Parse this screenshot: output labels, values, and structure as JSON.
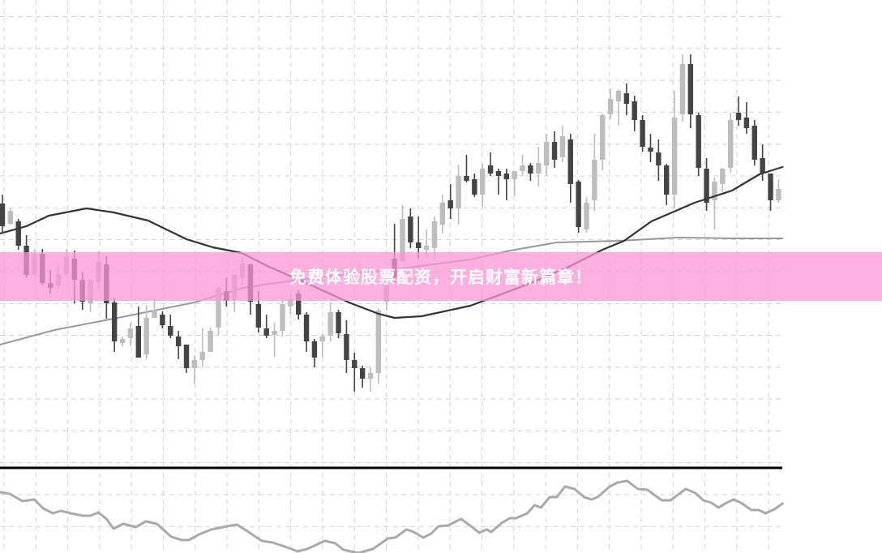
{
  "banner": {
    "text": "免费体验股票配资，开启财富新篇章！",
    "color": "#fb96d6"
  },
  "colors": {
    "bull": "#bdbdbd",
    "bear": "#444444",
    "ma_fast": "#333333",
    "ma_slow": "#999999",
    "oscillator": "#aaaaaa",
    "grid": "#d4d4d4",
    "separator": "#000000"
  },
  "chart_data": [
    {
      "type": "candlestick",
      "grid": true,
      "ohlc_format": [
        "open",
        "high",
        "low",
        "close"
      ],
      "candles": [
        [
          34.9,
          36.0,
          31.2,
          32.1
        ],
        [
          32.4,
          34.3,
          32.3,
          34.0
        ],
        [
          32.7,
          33.0,
          29.2,
          29.7
        ],
        [
          29.7,
          31.0,
          25.8,
          26.1
        ],
        [
          26.2,
          29.3,
          26.0,
          28.7
        ],
        [
          28.7,
          29.3,
          24.8,
          25.1
        ],
        [
          25.1,
          26.7,
          23.8,
          24.5
        ],
        [
          24.8,
          27.4,
          24.3,
          26.2
        ],
        [
          26.2,
          29.3,
          26.0,
          28.4
        ],
        [
          28.1,
          29.1,
          22.6,
          25.5
        ],
        [
          25.5,
          26.4,
          21.8,
          22.8
        ],
        [
          22.6,
          25.5,
          21.5,
          25.5
        ],
        [
          25.2,
          29.0,
          24.5,
          27.7
        ],
        [
          27.4,
          28.4,
          20.7,
          22.6
        ],
        [
          22.7,
          23.2,
          16.6,
          17.9
        ],
        [
          17.7,
          18.5,
          17.3,
          18.2
        ],
        [
          18.3,
          20.2,
          17.3,
          19.5
        ],
        [
          19.8,
          22.2,
          15.9,
          15.9
        ],
        [
          16.3,
          22.3,
          15.7,
          20.8
        ],
        [
          20.8,
          23.1,
          20.8,
          21.8
        ],
        [
          21.2,
          21.6,
          19.5,
          19.9
        ],
        [
          19.8,
          21.2,
          18.3,
          18.6
        ],
        [
          18.5,
          19.2,
          15.7,
          17.3
        ],
        [
          17.5,
          17.5,
          14.0,
          14.6
        ],
        [
          14.6,
          16.2,
          12.7,
          15.6
        ],
        [
          15.6,
          19.5,
          14.7,
          16.6
        ],
        [
          16.6,
          19.6,
          16.6,
          19.2
        ],
        [
          19.6,
          24.7,
          18.7,
          24.5
        ],
        [
          24.1,
          25.7,
          22.2,
          22.9
        ],
        [
          23.0,
          26.1,
          21.5,
          26.1
        ],
        [
          25.8,
          28.3,
          24.8,
          27.5
        ],
        [
          27.4,
          27.5,
          21.2,
          22.8
        ],
        [
          22.5,
          24.1,
          19.0,
          19.6
        ],
        [
          19.5,
          21.2,
          18.3,
          18.6
        ],
        [
          18.7,
          20.2,
          16.0,
          19.2
        ],
        [
          19.2,
          23.3,
          18.5,
          22.5
        ],
        [
          22.2,
          23.7,
          21.3,
          23.1
        ],
        [
          23.8,
          24.2,
          20.6,
          21.2
        ],
        [
          21.2,
          21.5,
          16.6,
          17.9
        ],
        [
          17.9,
          18.2,
          14.7,
          15.9
        ],
        [
          17.9,
          18.8,
          15.9,
          18.5
        ],
        [
          18.6,
          22.7,
          17.9,
          21.5
        ],
        [
          21.5,
          21.8,
          18.3,
          18.9
        ],
        [
          18.8,
          20.5,
          14.0,
          15.6
        ],
        [
          15.6,
          16.5,
          11.7,
          14.6
        ],
        [
          14.6,
          14.9,
          12.2,
          13.3
        ],
        [
          13.3,
          14.7,
          11.7,
          14.0
        ],
        [
          14.0,
          22.0,
          12.7,
          21.7
        ],
        [
          22.8,
          25.0,
          21.7,
          24.8
        ],
        [
          28.1,
          32.4,
          25.0,
          25.8
        ],
        [
          27.8,
          34.7,
          27.8,
          33.0
        ],
        [
          33.3,
          34.3,
          29.4,
          30.1
        ],
        [
          30.1,
          33.3,
          28.1,
          29.4
        ],
        [
          29.2,
          31.7,
          28.2,
          29.7
        ],
        [
          29.4,
          33.3,
          28.1,
          32.7
        ],
        [
          32.3,
          36.0,
          31.2,
          35.0
        ],
        [
          35.3,
          37.3,
          33.0,
          34.3
        ],
        [
          34.3,
          39.7,
          32.3,
          38.3
        ],
        [
          38.3,
          40.9,
          37.5,
          37.7
        ],
        [
          37.9,
          38.6,
          35.7,
          36.0
        ],
        [
          36.0,
          39.8,
          34.5,
          39.2
        ],
        [
          39.6,
          41.2,
          38.3,
          38.6
        ],
        [
          38.9,
          39.2,
          36.0,
          38.3
        ],
        [
          38.6,
          39.2,
          35.3,
          37.9
        ],
        [
          37.9,
          38.9,
          35.8,
          38.9
        ],
        [
          38.9,
          40.9,
          38.3,
          39.6
        ],
        [
          39.6,
          39.9,
          37.7,
          38.6
        ],
        [
          38.6,
          41.9,
          37.0,
          39.9
        ],
        [
          39.6,
          43.5,
          38.3,
          42.5
        ],
        [
          42.5,
          43.8,
          39.3,
          40.3
        ],
        [
          40.6,
          44.5,
          40.0,
          43.2
        ],
        [
          42.8,
          43.5,
          35.0,
          37.3
        ],
        [
          37.6,
          37.8,
          31.3,
          32.0
        ],
        [
          31.7,
          35.7,
          31.3,
          35.0
        ],
        [
          35.3,
          43.5,
          34.0,
          40.3
        ],
        [
          40.3,
          46.0,
          39.0,
          45.8
        ],
        [
          45.9,
          49.1,
          45.3,
          47.8
        ],
        [
          47.5,
          49.0,
          44.5,
          48.8
        ],
        [
          48.5,
          49.7,
          45.8,
          47.2
        ],
        [
          47.5,
          48.2,
          43.8,
          45.2
        ],
        [
          45.2,
          45.8,
          41.3,
          41.9
        ],
        [
          41.8,
          43.5,
          40.0,
          41.3
        ],
        [
          41.2,
          42.8,
          37.7,
          39.6
        ],
        [
          39.6,
          39.8,
          34.7,
          36.0
        ],
        [
          36.0,
          48.8,
          34.3,
          45.5
        ],
        [
          45.9,
          53.3,
          45.0,
          52.1
        ],
        [
          52.1,
          53.3,
          44.2,
          45.9
        ],
        [
          45.8,
          46.1,
          38.3,
          39.3
        ],
        [
          39.2,
          40.5,
          34.0,
          35.0
        ],
        [
          35.3,
          38.1,
          31.7,
          37.6
        ],
        [
          37.3,
          39.3,
          36.3,
          39.2
        ],
        [
          39.3,
          46.1,
          38.7,
          45.2
        ],
        [
          46.1,
          48.1,
          44.5,
          45.2
        ],
        [
          45.5,
          47.4,
          43.5,
          44.2
        ],
        [
          44.5,
          45.2,
          39.6,
          40.3
        ],
        [
          40.5,
          42.2,
          37.7,
          38.6
        ],
        [
          38.6,
          38.6,
          34.0,
          35.3
        ],
        [
          35.3,
          37.9,
          35.0,
          36.7
        ]
      ],
      "ma_fast": [
        [
          -0.3,
          31.2
        ],
        [
          3.0,
          32.1
        ],
        [
          5.8,
          33.4
        ],
        [
          10.5,
          34.3
        ],
        [
          13.9,
          33.8
        ],
        [
          18.2,
          32.8
        ],
        [
          23,
          30.5
        ],
        [
          26.3,
          29.5
        ],
        [
          29.9,
          28.8
        ],
        [
          33.1,
          27.2
        ],
        [
          38.2,
          25.0
        ],
        [
          43.3,
          22.7
        ],
        [
          47,
          21.3
        ],
        [
          49,
          20.8
        ],
        [
          52.4,
          21.0
        ],
        [
          58.5,
          22.3
        ],
        [
          64.5,
          24.5
        ],
        [
          70.6,
          27.0
        ],
        [
          75,
          29.2
        ],
        [
          77.7,
          30.3
        ],
        [
          81.1,
          32.7
        ],
        [
          86.5,
          35.0
        ],
        [
          91.2,
          36.5
        ],
        [
          94.6,
          38.5
        ],
        [
          97.5,
          39.4
        ]
      ],
      "ma_slow": [
        [
          -0.3,
          17.5
        ],
        [
          6.5,
          19.3
        ],
        [
          13.9,
          20.7
        ],
        [
          24,
          22.7
        ],
        [
          30.1,
          24.5
        ],
        [
          33.4,
          25.0
        ],
        [
          40.2,
          25.9
        ],
        [
          48.3,
          26.7
        ],
        [
          58.5,
          28.0
        ],
        [
          63.5,
          29.1
        ],
        [
          69.3,
          30.1
        ],
        [
          77,
          30.3
        ],
        [
          84.5,
          30.7
        ],
        [
          91.2,
          30.6
        ],
        [
          97.5,
          30.6
        ]
      ]
    },
    {
      "type": "line",
      "grid": true,
      "points": [
        [
          -0.3,
          83
        ],
        [
          0.9,
          81
        ],
        [
          2.5,
          72
        ],
        [
          4,
          74
        ],
        [
          5.1,
          63
        ],
        [
          6.3,
          57
        ],
        [
          7.3,
          60
        ],
        [
          8.5,
          57
        ],
        [
          10.1,
          54
        ],
        [
          11,
          54
        ],
        [
          12,
          58
        ],
        [
          13,
          50
        ],
        [
          13.9,
          38
        ],
        [
          15.1,
          44
        ],
        [
          16.7,
          40
        ],
        [
          17.9,
          47
        ],
        [
          19.3,
          44
        ],
        [
          21.1,
          28
        ],
        [
          22.4,
          24
        ],
        [
          23.3,
          24
        ],
        [
          24.6,
          31
        ],
        [
          26.1,
          37
        ],
        [
          28.1,
          41
        ],
        [
          29.3,
          43
        ],
        [
          30.6,
          35
        ],
        [
          32.4,
          23
        ],
        [
          33.7,
          21
        ],
        [
          35,
          17
        ],
        [
          36.9,
          10
        ],
        [
          38.1,
          13
        ],
        [
          40.3,
          23
        ],
        [
          41.6,
          20
        ],
        [
          42.6,
          12
        ],
        [
          44.5,
          8
        ],
        [
          46.3,
          13
        ],
        [
          48.2,
          26
        ],
        [
          49.1,
          27
        ],
        [
          50.5,
          37
        ],
        [
          51.4,
          34
        ],
        [
          52.6,
          27
        ],
        [
          53.6,
          32
        ],
        [
          54.5,
          41
        ],
        [
          55.7,
          42
        ],
        [
          57.3,
          50
        ],
        [
          58.3,
          43
        ],
        [
          59.6,
          33
        ],
        [
          60.5,
          37
        ],
        [
          61.1,
          34
        ],
        [
          62.4,
          45
        ],
        [
          63.4,
          51
        ],
        [
          64.2,
          51
        ],
        [
          65.6,
          57
        ],
        [
          66.5,
          67
        ],
        [
          67.3,
          64
        ],
        [
          68.4,
          77
        ],
        [
          69.3,
          77
        ],
        [
          70.3,
          90
        ],
        [
          71.5,
          87
        ],
        [
          72.7,
          77
        ],
        [
          73.6,
          74
        ],
        [
          74.4,
          77
        ],
        [
          75.9,
          90
        ],
        [
          76.9,
          95
        ],
        [
          78.1,
          97
        ],
        [
          79.4,
          87
        ],
        [
          80.6,
          86
        ],
        [
          82.4,
          73
        ],
        [
          83.5,
          73
        ],
        [
          85.4,
          87
        ],
        [
          86.6,
          82
        ],
        [
          87.6,
          73
        ],
        [
          88.6,
          70
        ],
        [
          89.5,
          64
        ],
        [
          90.5,
          70
        ],
        [
          91.4,
          74
        ],
        [
          92.3,
          70
        ],
        [
          93.6,
          61
        ],
        [
          94.5,
          61
        ],
        [
          95.4,
          57
        ],
        [
          96.5,
          62
        ],
        [
          97.5,
          69
        ]
      ]
    }
  ]
}
